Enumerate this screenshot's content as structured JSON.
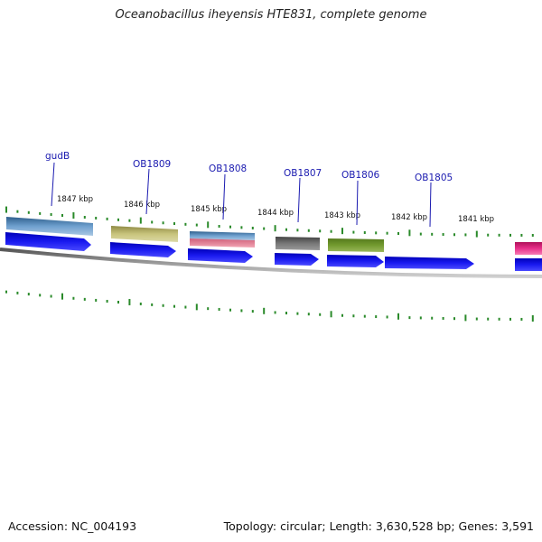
{
  "title": "Oceanobacillus iheyensis HTE831, complete genome",
  "accession": "Accession: NC_004193",
  "info": "Topology: circular; Length: 3,630,528 bp; Genes: 3,591",
  "scale": {
    "labels": [
      "1847 kbp",
      "1846 kbp",
      "1845 kbp",
      "1844 kbp",
      "1843 kbp",
      "1842 kbp",
      "1841 kbp"
    ]
  },
  "genes": [
    {
      "name": "gudB",
      "color": "#4a7fb0"
    },
    {
      "name": "OB1809",
      "color": "#b8b46a"
    },
    {
      "name": "OB1808",
      "color": "#4a7fb0",
      "color2": "#e07a8e"
    },
    {
      "name": "OB1807",
      "color": "#606060"
    },
    {
      "name": "OB1806",
      "color": "#6b8c2a"
    },
    {
      "name": "OB1805",
      "color": "#e0207a"
    }
  ],
  "colors": {
    "cds_arrow": "#1010e0",
    "tick": "#2a8a2a",
    "backbone": "#808080",
    "label_line": "#1a1ab0"
  }
}
